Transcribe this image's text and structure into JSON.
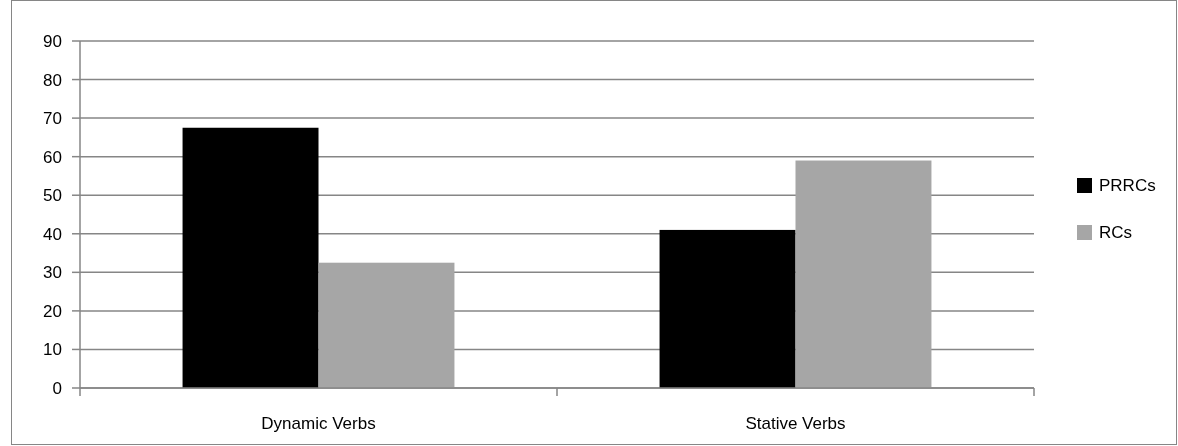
{
  "chart_data": {
    "type": "bar",
    "categories": [
      "Dynamic Verbs",
      "Stative Verbs"
    ],
    "series": [
      {
        "name": "PRRCs",
        "color": "#000000",
        "values": [
          67.5,
          41
        ]
      },
      {
        "name": "RCs",
        "color": "#a6a6a6",
        "values": [
          32.5,
          59
        ]
      }
    ],
    "ylim": [
      0,
      90
    ],
    "yticks": [
      0,
      10,
      20,
      30,
      40,
      50,
      60,
      70,
      80,
      90
    ],
    "grid": "y",
    "legend": "right"
  }
}
